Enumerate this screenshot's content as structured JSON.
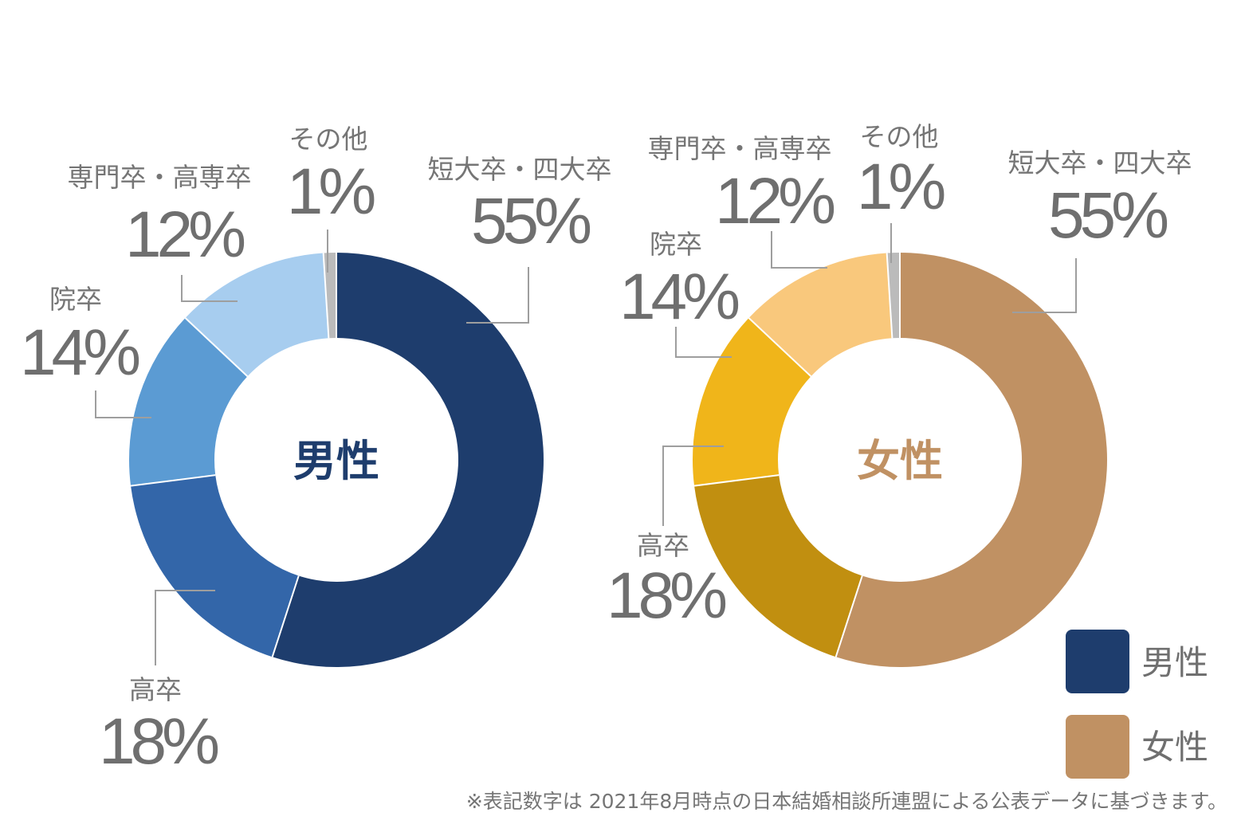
{
  "chart_data": [
    {
      "type": "pie",
      "center_label": "男性",
      "center_color": "#1e3d6d",
      "categories": [
        "短大卒・四大卒",
        "高卒",
        "院卒",
        "専門卒・高専卒",
        "その他"
      ],
      "values": [
        55,
        18,
        14,
        12,
        1
      ],
      "value_labels": [
        "55%",
        "18%",
        "14%",
        "12%",
        "1%"
      ],
      "colors": [
        "#1e3d6d",
        "#3366a9",
        "#5b9bd3",
        "#a7cdef",
        "#bbbbbb"
      ]
    },
    {
      "type": "pie",
      "center_label": "女性",
      "center_color": "#c09163",
      "categories": [
        "短大卒・四大卒",
        "高卒",
        "院卒",
        "専門卒・高専卒",
        "その他"
      ],
      "values": [
        55,
        18,
        14,
        12,
        1
      ],
      "value_labels": [
        "55%",
        "18%",
        "14%",
        "12%",
        "1%"
      ],
      "colors": [
        "#c09163",
        "#c18f10",
        "#f0b51a",
        "#f9c87c",
        "#bbbbbb"
      ]
    }
  ],
  "legend": [
    {
      "label": "男性",
      "color": "#1e3d6d"
    },
    {
      "label": "女性",
      "color": "#c09163"
    }
  ],
  "footnote": "※表記数字は 2021年8月時点の日本結婚相談所連盟による公表データに基づきます。"
}
